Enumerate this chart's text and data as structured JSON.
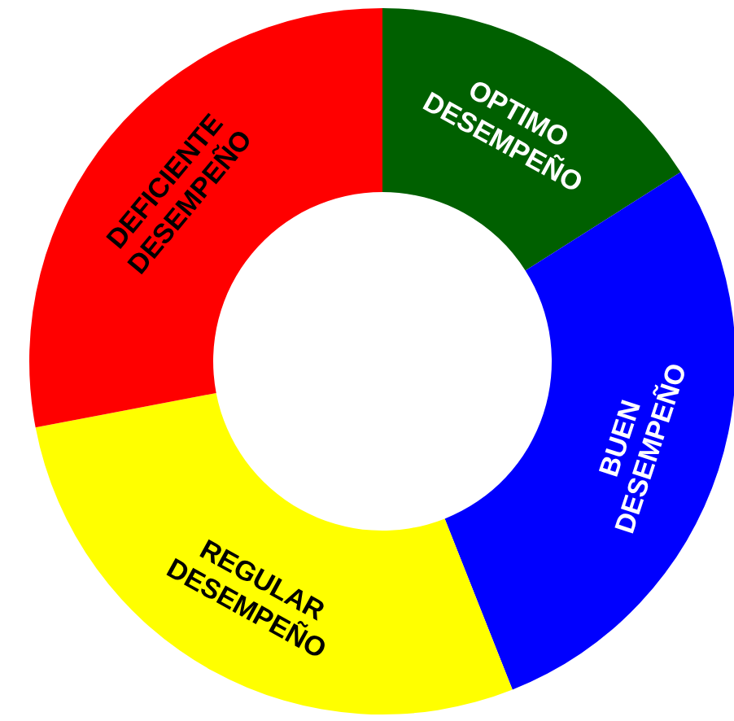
{
  "chart_data": {
    "type": "donut",
    "categories": [
      "OPTIMO DESEMPEÑO",
      "BUEN DESEMPEÑO",
      "REGULAR DESEMPEÑO",
      "DEFICIENTE DESEMPEÑO"
    ],
    "values": [
      16,
      28,
      28,
      28
    ],
    "colors": [
      "#006000",
      "#0000ff",
      "#ffff00",
      "#ff0000"
    ],
    "legend": false
  }
}
